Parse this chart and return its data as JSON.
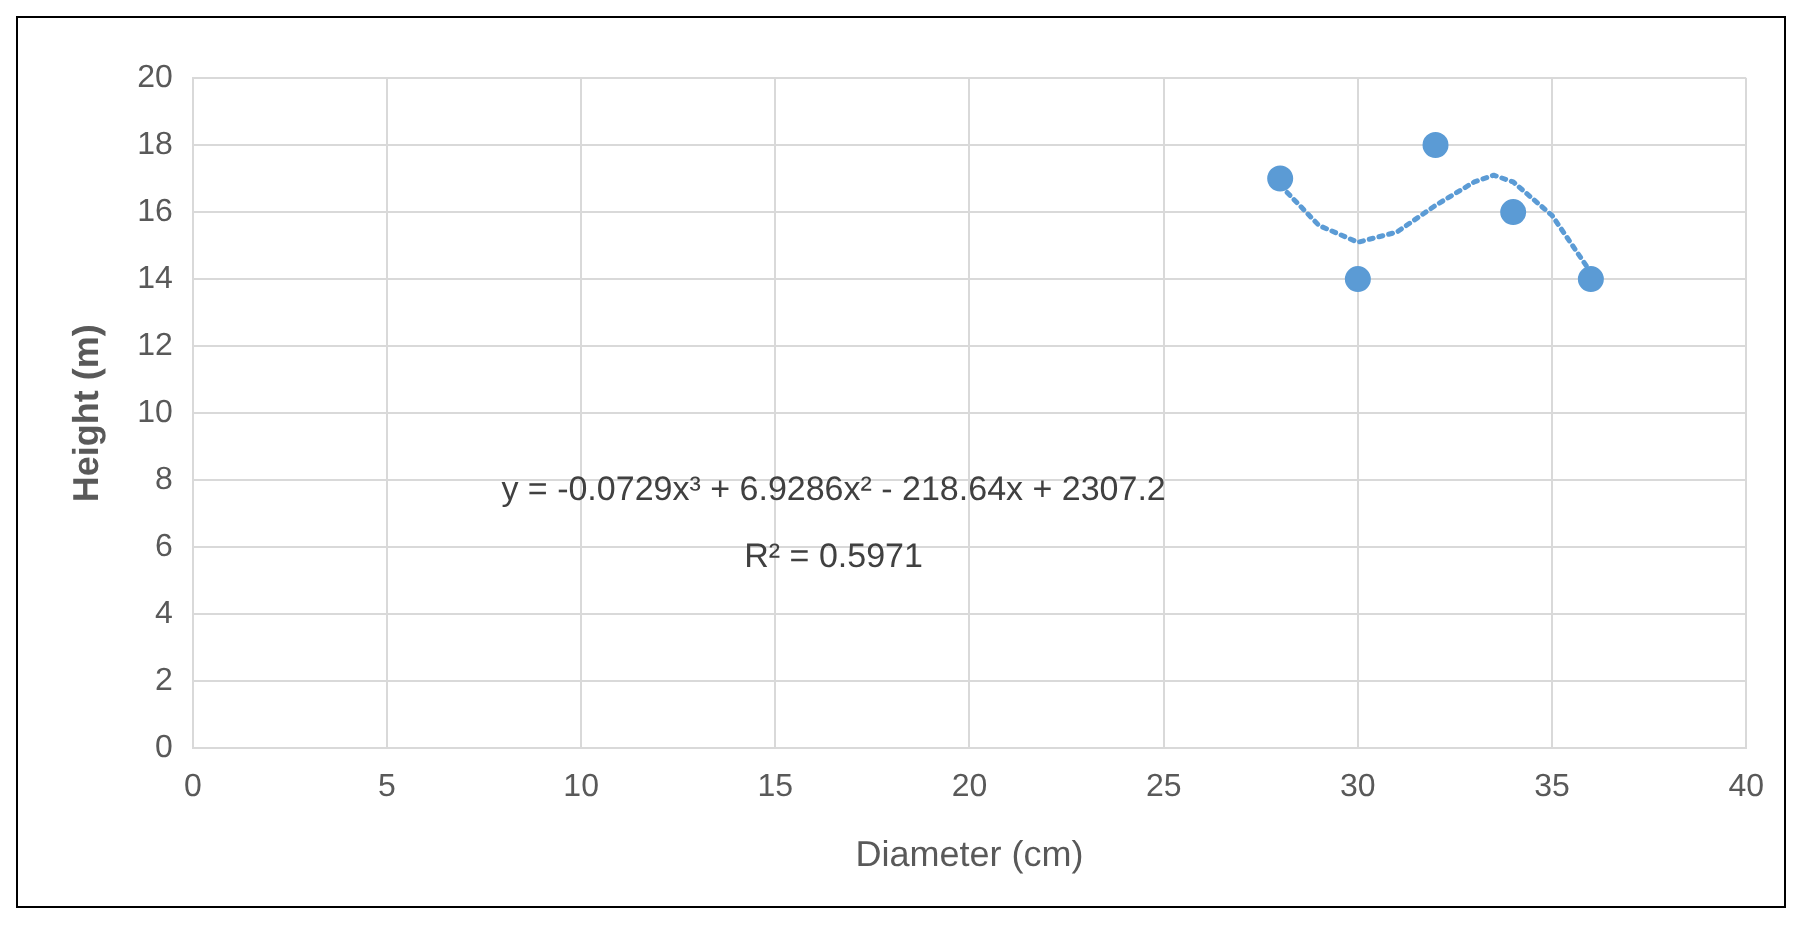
{
  "chart_data": {
    "type": "scatter",
    "xlabel": "Diameter (cm)",
    "ylabel": "Height (m)",
    "xlim": [
      0,
      40
    ],
    "xticks": [
      0,
      5,
      10,
      15,
      20,
      25,
      30,
      35,
      40
    ],
    "ylim": [
      0,
      20
    ],
    "yticks": [
      0,
      2,
      4,
      6,
      8,
      10,
      12,
      14,
      16,
      18,
      20
    ],
    "grid": true,
    "legend": false,
    "annotations": [
      "y = -0.0729x³ + 6.9286x² - 218.64x + 2307.2",
      "R² = 0.5971"
    ],
    "series": [
      {
        "type": "scatter",
        "color": "#5b9bd5",
        "marker": "circle",
        "x": [
          28,
          30,
          32,
          34,
          36
        ],
        "values": [
          17,
          14,
          18,
          16,
          14
        ]
      },
      {
        "type": "line",
        "color": "#5b9bd5",
        "marker": "none",
        "line_style": "dotted",
        "x": [
          28,
          29,
          30,
          31,
          32,
          33,
          33.5,
          34,
          35,
          36
        ],
        "values": [
          16.8,
          15.6,
          15.1,
          15.4,
          16.2,
          16.9,
          17.1,
          16.9,
          15.9,
          14.2
        ]
      }
    ]
  }
}
